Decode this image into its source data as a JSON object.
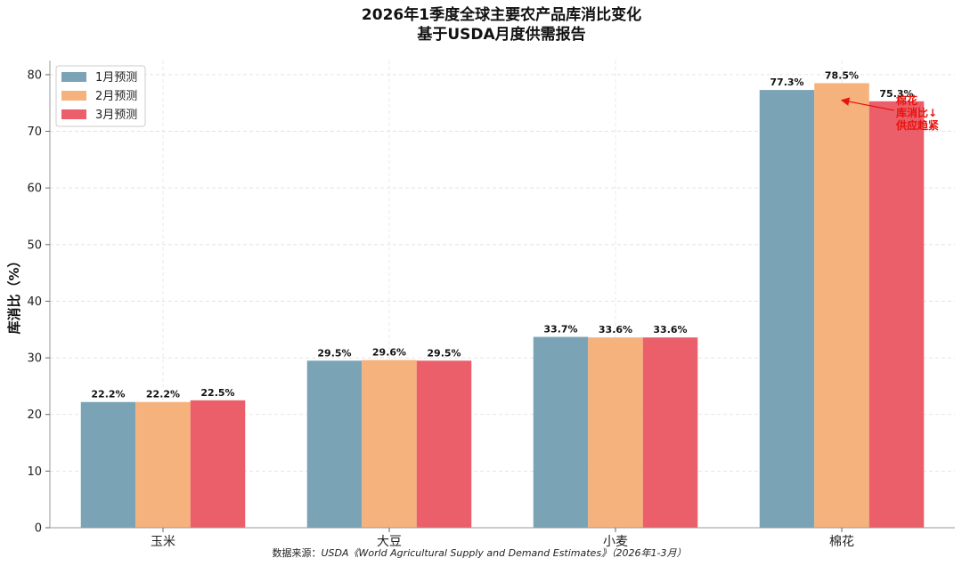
{
  "title": {
    "line1": "2026年1季度全球主要农产品库消比变化",
    "line2": "基于USDA月度供需报告"
  },
  "chart_data": {
    "type": "bar",
    "categories": [
      "玉米",
      "大豆",
      "小麦",
      "棉花"
    ],
    "series": [
      {
        "name": "1月预测",
        "values": [
          22.2,
          29.5,
          33.7,
          77.3
        ],
        "labels": [
          "22.2%",
          "29.5%",
          "33.7%",
          "77.3%"
        ],
        "color": "#7aa3b6"
      },
      {
        "name": "2月预测",
        "values": [
          22.2,
          29.6,
          33.6,
          78.5
        ],
        "labels": [
          "22.2%",
          "29.6%",
          "33.6%",
          "78.5%"
        ],
        "color": "#f5b27c"
      },
      {
        "name": "3月预测",
        "values": [
          22.5,
          29.5,
          33.6,
          75.3
        ],
        "labels": [
          "22.5%",
          "29.5%",
          "33.6%",
          "75.3%"
        ],
        "color": "#eb5f6a"
      }
    ],
    "ylabel": "库消比（%）",
    "ylim": [
      0,
      82.5
    ],
    "yticks": [
      0,
      10,
      20,
      30,
      40,
      50,
      60,
      70,
      80
    ],
    "grid": true,
    "legend": "top-left",
    "annotation": {
      "lines": [
        "棉花",
        "库消比↓",
        "供应趋紧"
      ],
      "target_category": "棉花",
      "target_series": "2月预测",
      "target_value": 75.5,
      "color": "#e8120c"
    }
  },
  "source": {
    "prefix": "数据来源：",
    "text": "USDA《World Agricultural Supply and Demand Estimates》（2026年1-3月）"
  }
}
